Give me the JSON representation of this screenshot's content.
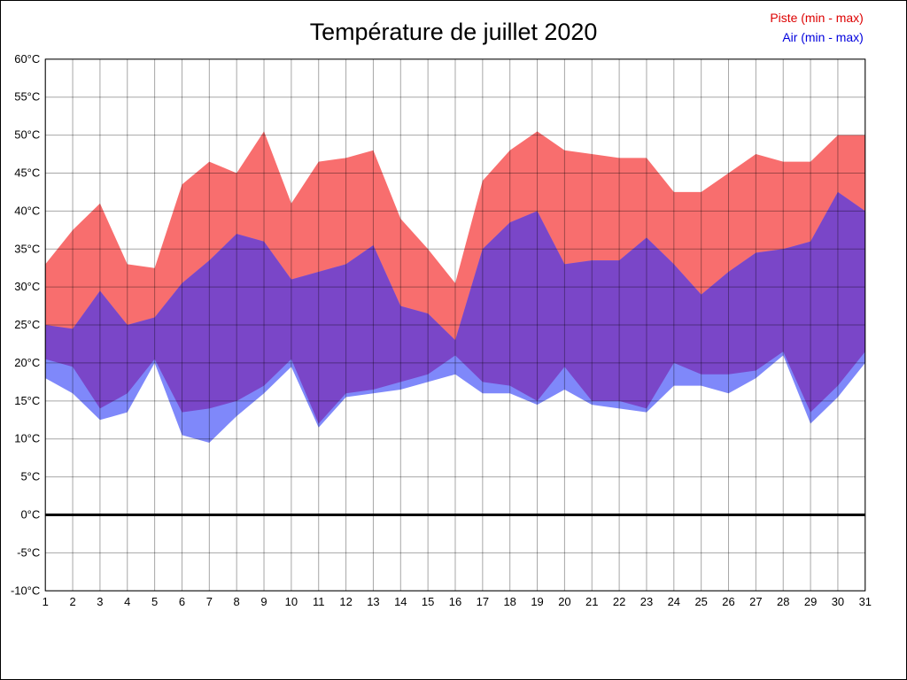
{
  "legend": {
    "piste": {
      "label": "Piste (min - max)",
      "color": "#dd0000"
    },
    "air": {
      "label": "Air (min - max)",
      "color": "#0000dd"
    }
  },
  "chart_data": {
    "type": "area",
    "title": "Température de juillet 2020",
    "categories": [
      1,
      2,
      3,
      4,
      5,
      6,
      7,
      8,
      9,
      10,
      11,
      12,
      13,
      14,
      15,
      16,
      17,
      18,
      19,
      20,
      21,
      22,
      23,
      24,
      25,
      26,
      27,
      28,
      29,
      30,
      31
    ],
    "ylim": [
      -10,
      60
    ],
    "ytick_step": 5,
    "ytick_labels": [
      "60°C",
      "55°C",
      "50°C",
      "45°C",
      "40°C",
      "35°C",
      "30°C",
      "25°C",
      "20°C",
      "15°C",
      "10°C",
      "5°C",
      "0°C",
      "-5°C",
      "-10°C"
    ],
    "grid": true,
    "legend_position": "top-right",
    "series": [
      {
        "name": "Piste max",
        "values": [
          33,
          37.5,
          41,
          33,
          32.5,
          43.5,
          46.5,
          45,
          50.5,
          41,
          46.5,
          47,
          48,
          39,
          35,
          30.5,
          44,
          48,
          50.5,
          48,
          47.5,
          47,
          47,
          42.5,
          42.5,
          45,
          47.5,
          46.5,
          46.5,
          50,
          50
        ]
      },
      {
        "name": "Piste min",
        "values": [
          20.5,
          19.5,
          14,
          16,
          20.5,
          13.5,
          14,
          15,
          17,
          20.5,
          12,
          16,
          16.5,
          17.5,
          18.5,
          21,
          17.5,
          17,
          15,
          19.5,
          15,
          15,
          14,
          20,
          18.5,
          18.5,
          19,
          21.5,
          13.5,
          17,
          21.5
        ]
      },
      {
        "name": "Air max",
        "values": [
          25,
          24.5,
          29.5,
          25,
          26,
          30.5,
          33.5,
          37,
          36,
          31,
          32,
          33,
          35.5,
          27.5,
          26.5,
          23,
          35,
          38.5,
          40,
          33,
          33.5,
          33.5,
          36.5,
          33,
          29,
          32,
          34.5,
          35,
          36,
          42.5,
          40
        ]
      },
      {
        "name": "Air min",
        "values": [
          18,
          16,
          12.5,
          13.5,
          20,
          10.5,
          9.5,
          13,
          16,
          19.5,
          11.5,
          15.5,
          16,
          16.5,
          17.5,
          18.5,
          16,
          16,
          14.5,
          16.5,
          14.5,
          14,
          13.5,
          17,
          17,
          16,
          18,
          21,
          12,
          15.5,
          20
        ]
      }
    ],
    "band_colors": {
      "piste": "#f86e6e",
      "air": "#7f88fa",
      "overlap": "#7a46c8",
      "zero_line": "#000000"
    }
  }
}
